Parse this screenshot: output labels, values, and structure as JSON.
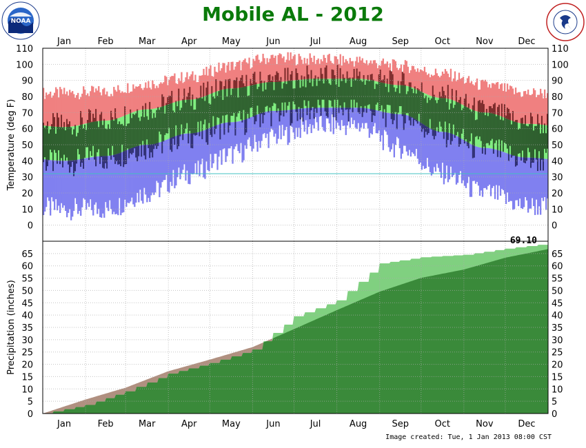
{
  "title": "Mobile AL - 2012",
  "footer": "Image created: Tue, 1 Jan 2013 08:00 CST",
  "logos": {
    "left": "noaa-logo",
    "right": "nws-logo",
    "left_text": "NOAA",
    "right_text": "NATIONAL WEATHER SERVICE"
  },
  "colors": {
    "record_range": "#f08080",
    "normal_range": "#80ee80",
    "record_low_range": "#8080f0",
    "actual_range": "#2e5e2e",
    "actual_above": "#7a2a2a",
    "actual_below": "#2e2e70",
    "freeze_line": "#40c0c0",
    "precip_normal": "#b09080",
    "precip_actual_above": "#80d080",
    "precip_normal_area": "#3a8a3a"
  },
  "chart_data": [
    {
      "type": "area",
      "name": "temperature",
      "ylabel": "Temperature (deg F)",
      "ylim": [
        -10,
        110
      ],
      "yticks": [
        0,
        10,
        20,
        30,
        40,
        50,
        60,
        70,
        80,
        90,
        100,
        110
      ],
      "months": [
        "Jan",
        "Feb",
        "Mar",
        "Apr",
        "May",
        "Jun",
        "Jul",
        "Aug",
        "Sep",
        "Oct",
        "Nov",
        "Dec"
      ],
      "freeze_line": 32,
      "normal_high_monthly": [
        61,
        65,
        72,
        78,
        85,
        89,
        91,
        91,
        87,
        79,
        70,
        63
      ],
      "normal_low_monthly": [
        40,
        43,
        50,
        57,
        64,
        71,
        73,
        73,
        69,
        58,
        48,
        42
      ],
      "record_high_monthly": [
        82,
        83,
        88,
        92,
        99,
        104,
        103,
        102,
        99,
        94,
        87,
        82
      ],
      "record_low_monthly": [
        10,
        10,
        20,
        32,
        44,
        55,
        62,
        62,
        48,
        32,
        20,
        12
      ],
      "grid": true
    },
    {
      "type": "area",
      "name": "precipitation",
      "ylabel": "Precipitation (inches)",
      "ylim": [
        0,
        70
      ],
      "yticks": [
        0,
        5,
        10,
        15,
        20,
        25,
        30,
        35,
        40,
        45,
        50,
        55,
        60,
        65
      ],
      "months": [
        "Jan",
        "Feb",
        "Mar",
        "Apr",
        "May",
        "Jun",
        "Jul",
        "Aug",
        "Sep",
        "Oct",
        "Nov",
        "Dec"
      ],
      "total_label": "69.10",
      "series": [
        {
          "name": "normal",
          "cumulative_monthly_end": [
            5.7,
            10.5,
            17.2,
            21.9,
            27.0,
            34.3,
            42.0,
            49.5,
            55.1,
            58.5,
            63.3,
            66.8
          ]
        },
        {
          "name": "actual",
          "cumulative_monthly_end": [
            3.5,
            9.0,
            16.2,
            20.5,
            26.0,
            39.5,
            46.0,
            61.0,
            63.5,
            64.5,
            67.0,
            69.1
          ]
        }
      ],
      "grid": true
    }
  ]
}
